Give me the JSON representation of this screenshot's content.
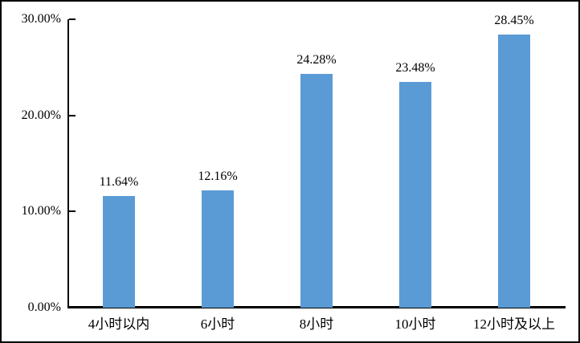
{
  "chart_data": {
    "type": "bar",
    "title": "",
    "xlabel": "",
    "ylabel": "",
    "categories": [
      "4小时以内",
      "6小时",
      "8小时",
      "10小时",
      "12小时及以上"
    ],
    "values": [
      11.64,
      12.16,
      24.28,
      23.48,
      28.45
    ],
    "data_labels": [
      "11.64%",
      "12.16%",
      "24.28%",
      "23.48%",
      "28.45%"
    ],
    "ylim": [
      0,
      30
    ],
    "y_ticks": [
      {
        "value": 0,
        "label": "0.00%"
      },
      {
        "value": 10,
        "label": "10.00%"
      },
      {
        "value": 20,
        "label": "20.00%"
      },
      {
        "value": 30,
        "label": "30.00%"
      }
    ],
    "grid": false,
    "legend": "none",
    "colors": {
      "bar_fill": "#5B9BD5",
      "axis": "#000000",
      "text": "#000000",
      "background": "#FFFFFF",
      "frame_border": "#000000"
    }
  }
}
